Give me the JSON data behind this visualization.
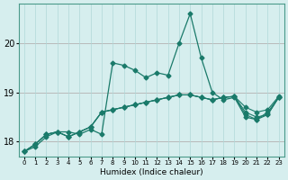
{
  "title": "",
  "xlabel": "Humidex (Indice chaleur)",
  "ylabel": "",
  "background_color": "#d6eeee",
  "grid_color": "#b0d8d8",
  "line_color": "#1a7a6a",
  "x_min": 0,
  "x_max": 23,
  "y_min": 17.7,
  "y_max": 20.8,
  "yticks": [
    18,
    19,
    20
  ],
  "xticks": [
    0,
    1,
    2,
    3,
    4,
    5,
    6,
    7,
    8,
    9,
    10,
    11,
    12,
    13,
    14,
    15,
    16,
    17,
    18,
    19,
    20,
    21,
    22,
    23
  ],
  "series1": [
    17.8,
    17.9,
    18.1,
    18.2,
    18.2,
    18.15,
    18.25,
    18.15,
    19.6,
    19.55,
    19.45,
    19.3,
    19.4,
    19.35,
    20.0,
    20.6,
    19.7,
    19.0,
    18.85,
    18.9,
    18.5,
    18.45,
    18.55,
    18.9
  ],
  "series2": [
    17.8,
    17.95,
    18.15,
    18.2,
    18.1,
    18.2,
    18.3,
    18.6,
    18.65,
    18.7,
    18.75,
    18.8,
    18.85,
    18.9,
    18.95,
    18.95,
    18.9,
    18.85,
    18.9,
    18.92,
    18.7,
    18.6,
    18.65,
    18.92
  ],
  "series3": [
    17.8,
    17.95,
    18.15,
    18.2,
    18.1,
    18.2,
    18.3,
    18.6,
    18.65,
    18.7,
    18.75,
    18.8,
    18.85,
    18.9,
    18.95,
    18.95,
    18.9,
    18.85,
    18.9,
    18.92,
    18.6,
    18.5,
    18.55,
    18.9
  ],
  "series4": [
    17.8,
    17.95,
    18.15,
    18.2,
    18.1,
    18.2,
    18.3,
    18.6,
    18.65,
    18.7,
    18.75,
    18.8,
    18.85,
    18.9,
    18.95,
    18.95,
    18.9,
    18.85,
    18.9,
    18.92,
    18.55,
    18.45,
    18.6,
    18.9
  ]
}
